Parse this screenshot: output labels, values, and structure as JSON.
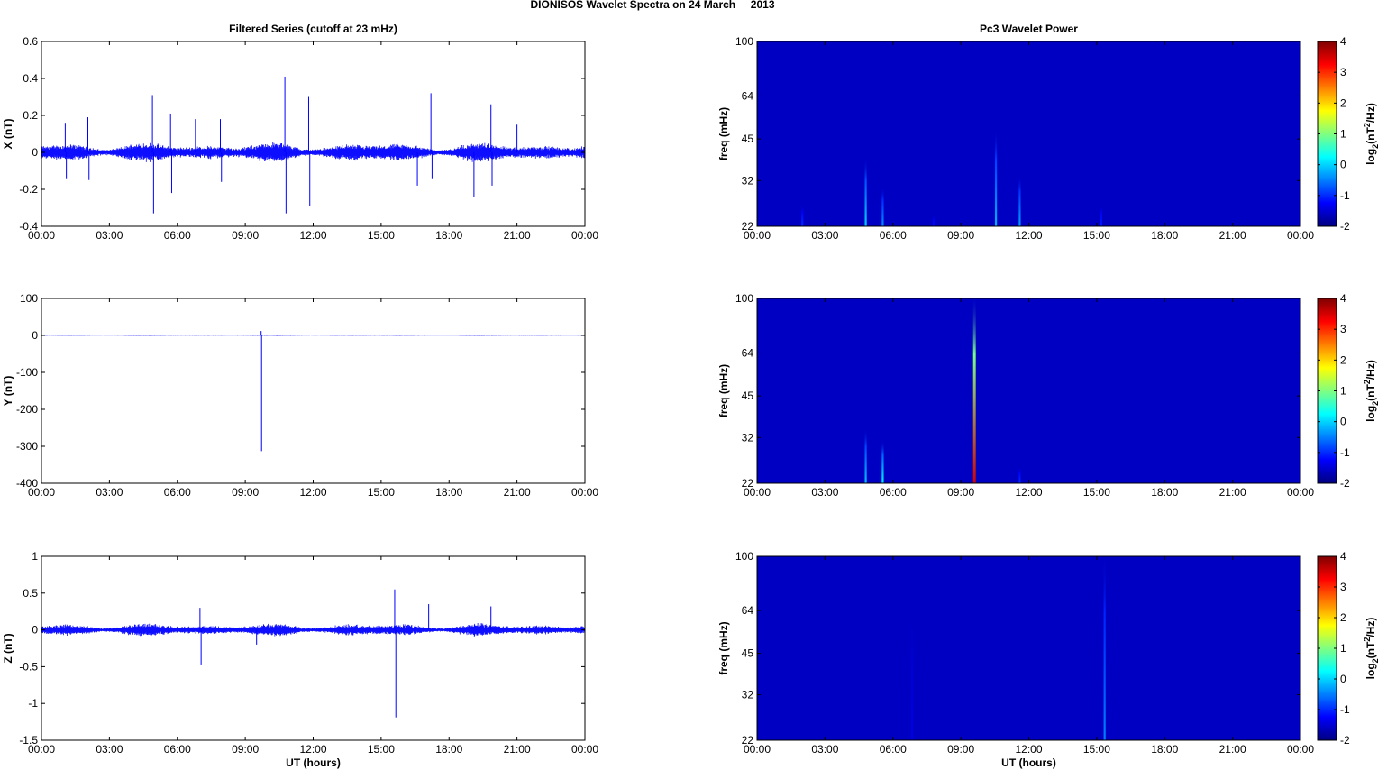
{
  "figure": {
    "title": "DIONISOS Wavelet Spectra on 24 March     2013"
  },
  "chart_data": [
    {
      "id": "x-series",
      "type": "line",
      "title": "Filtered Series (cutoff at 23 mHz)",
      "xlabel": "",
      "ylabel": "X (nT)",
      "xlim": [
        0,
        24
      ],
      "ylim": [
        -0.4,
        0.6
      ],
      "xticks": [
        "00:00",
        "03:00",
        "06:00",
        "09:00",
        "12:00",
        "15:00",
        "18:00",
        "21:00",
        "00:00"
      ],
      "yticks": [
        "-0.4",
        "-0.2",
        "0",
        "0.2",
        "0.4",
        "0.6"
      ],
      "color": "#0000ff",
      "noise_amplitude": 0.03,
      "spikes": [
        {
          "x": 1.05,
          "y": 0.16
        },
        {
          "x": 1.1,
          "y": -0.14
        },
        {
          "x": 2.05,
          "y": 0.19
        },
        {
          "x": 2.1,
          "y": -0.15
        },
        {
          "x": 4.9,
          "y": 0.31
        },
        {
          "x": 4.95,
          "y": -0.33
        },
        {
          "x": 5.7,
          "y": 0.21
        },
        {
          "x": 5.75,
          "y": -0.22
        },
        {
          "x": 6.8,
          "y": 0.18
        },
        {
          "x": 7.9,
          "y": 0.18
        },
        {
          "x": 7.95,
          "y": -0.16
        },
        {
          "x": 10.75,
          "y": 0.41
        },
        {
          "x": 10.8,
          "y": -0.33
        },
        {
          "x": 11.8,
          "y": 0.3
        },
        {
          "x": 11.85,
          "y": -0.29
        },
        {
          "x": 16.6,
          "y": -0.18
        },
        {
          "x": 17.2,
          "y": 0.32
        },
        {
          "x": 17.25,
          "y": -0.14
        },
        {
          "x": 19.1,
          "y": -0.24
        },
        {
          "x": 19.85,
          "y": 0.26
        },
        {
          "x": 19.9,
          "y": -0.18
        },
        {
          "x": 21.0,
          "y": 0.15
        }
      ]
    },
    {
      "id": "y-series",
      "type": "line",
      "xlabel": "",
      "ylabel": "Y (nT)",
      "xlim": [
        0,
        24
      ],
      "ylim": [
        -400,
        100
      ],
      "xticks": [
        "00:00",
        "03:00",
        "06:00",
        "09:00",
        "12:00",
        "15:00",
        "18:00",
        "21:00",
        "00:00"
      ],
      "yticks": [
        "-400",
        "-300",
        "-200",
        "-100",
        "0",
        "100"
      ],
      "color": "#0000ff",
      "noise_amplitude": 0.6,
      "spikes": [
        {
          "x": 9.7,
          "y": 12
        },
        {
          "x": 9.72,
          "y": -313
        }
      ]
    },
    {
      "id": "z-series",
      "type": "line",
      "xlabel": "UT (hours)",
      "ylabel": "Z (nT)",
      "xlim": [
        0,
        24
      ],
      "ylim": [
        -1.5,
        1
      ],
      "xticks": [
        "00:00",
        "03:00",
        "06:00",
        "09:00",
        "12:00",
        "15:00",
        "18:00",
        "21:00",
        "00:00"
      ],
      "yticks": [
        "-1.5",
        "-1",
        "-0.5",
        "0",
        "0.5",
        "1"
      ],
      "color": "#0000ff",
      "noise_amplitude": 0.05,
      "spikes": [
        {
          "x": 7.0,
          "y": 0.3
        },
        {
          "x": 7.05,
          "y": -0.47
        },
        {
          "x": 9.5,
          "y": -0.2
        },
        {
          "x": 15.6,
          "y": 0.55
        },
        {
          "x": 15.65,
          "y": -1.19
        },
        {
          "x": 17.1,
          "y": 0.35
        },
        {
          "x": 19.85,
          "y": 0.32
        }
      ]
    },
    {
      "id": "x-wavelet",
      "type": "heatmap",
      "title": "Pc3 Wavelet Power",
      "xlabel": "",
      "ylabel": "freq (mHz)",
      "xlim": [
        0,
        24
      ],
      "ylim": [
        22,
        100
      ],
      "xticks": [
        "00:00",
        "03:00",
        "06:00",
        "09:00",
        "12:00",
        "15:00",
        "18:00",
        "21:00",
        "00:00"
      ],
      "yticks": [
        22,
        32,
        45,
        64,
        100
      ],
      "background_level": -1.6,
      "colorbar": {
        "label": "log2(nT²/Hz)",
        "range": [
          -2,
          4
        ],
        "ticks": [
          "-2",
          "-1",
          "0",
          "1",
          "2",
          "3",
          "4"
        ]
      },
      "features": [
        {
          "t": 2.0,
          "fmax": 26,
          "level": -1.0
        },
        {
          "t": 4.8,
          "fmax": 38,
          "level": 0.0
        },
        {
          "t": 5.55,
          "fmax": 30,
          "level": -0.4
        },
        {
          "t": 7.8,
          "fmax": 24,
          "level": -1.2
        },
        {
          "t": 10.55,
          "fmax": 48,
          "level": -0.2
        },
        {
          "t": 11.6,
          "fmax": 33,
          "level": -0.3
        },
        {
          "t": 15.2,
          "fmax": 26,
          "level": -1.1
        }
      ]
    },
    {
      "id": "y-wavelet",
      "type": "heatmap",
      "xlabel": "",
      "ylabel": "freq (mHz)",
      "xlim": [
        0,
        24
      ],
      "ylim": [
        22,
        100
      ],
      "xticks": [
        "00:00",
        "03:00",
        "06:00",
        "09:00",
        "12:00",
        "15:00",
        "18:00",
        "21:00",
        "00:00"
      ],
      "yticks": [
        22,
        32,
        45,
        64,
        100
      ],
      "background_level": -1.6,
      "colorbar": {
        "label": "log2(nT²/Hz)",
        "range": [
          -2,
          4
        ],
        "ticks": [
          "-2",
          "-1",
          "0",
          "1",
          "2",
          "3",
          "4"
        ]
      },
      "features": [
        {
          "t": 4.8,
          "fmax": 34,
          "level": -0.1
        },
        {
          "t": 5.55,
          "fmax": 31,
          "level": 0.2
        },
        {
          "t": 9.6,
          "fmax": 100,
          "level": 3.5
        },
        {
          "t": 11.6,
          "fmax": 25,
          "level": -1.0
        }
      ]
    },
    {
      "id": "z-wavelet",
      "type": "heatmap",
      "xlabel": "UT (hours)",
      "ylabel": "freq (mHz)",
      "xlim": [
        0,
        24
      ],
      "ylim": [
        22,
        100
      ],
      "xticks": [
        "00:00",
        "03:00",
        "06:00",
        "09:00",
        "12:00",
        "15:00",
        "18:00",
        "21:00",
        "00:00"
      ],
      "yticks": [
        22,
        32,
        45,
        64,
        100
      ],
      "background_level": -1.6,
      "colorbar": {
        "label": "log2(nT²/Hz)",
        "range": [
          -2,
          4
        ],
        "ticks": [
          "-2",
          "-1",
          "0",
          "1",
          "2",
          "3",
          "4"
        ]
      },
      "features": [
        {
          "t": 6.85,
          "fmax": 60,
          "level": -1.4
        },
        {
          "t": 15.35,
          "fmax": 100,
          "level": -0.5
        }
      ]
    }
  ]
}
